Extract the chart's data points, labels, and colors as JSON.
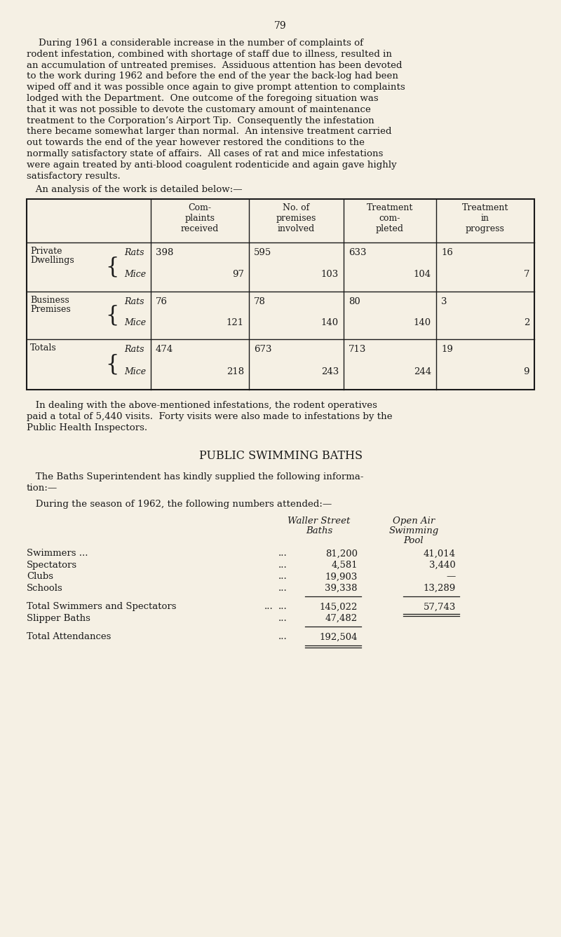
{
  "page_number": "79",
  "bg_color": "#f5f0e4",
  "text_color": "#1a1a1a",
  "p1_lines": [
    "    During 1961 a considerable increase in the number of complaints of",
    "rodent infestation, combined with shortage of staff due to illness, resulted in",
    "an accumulation of untreated premises.  Assiduous attention has been devoted",
    "to the work during 1962 and before the end of the year the back-log had been",
    "wiped off and it was possible once again to give prompt attention to complaints",
    "lodged with the Department.  One outcome of the foregoing situation was",
    "that it was not possible to devote the customary amount of maintenance",
    "treatment to the Corporation’s Airport Tip.  Consequently the infestation",
    "there became somewhat larger than normal.  An intensive treatment carried",
    "out towards the end of the year however restored the conditions to the",
    "normally satisfactory state of affairs.  All cases of rat and mice infestations",
    "were again treated by anti-blood coagulent rodenticide and again gave highly",
    "satisfactory results."
  ],
  "analysis_intro": "   An analysis of the work is detailed below:—",
  "table_col_headers": [
    "Com-\nplaints\nreceived",
    "No. of\npremises\ninvolved",
    "Treatment\ncom-\npleted",
    "Treatment\nin\nprogress"
  ],
  "table_rows": [
    {
      "category1": "Private",
      "category2": "Dwellings",
      "complaints_rats": "398",
      "complaints_mice": "97",
      "premises_rats": "595",
      "premises_mice": "103",
      "treatment_comp_rats": "633",
      "treatment_comp_mice": "104",
      "treatment_prog_rats": "16",
      "treatment_prog_mice": "7"
    },
    {
      "category1": "Business",
      "category2": "Premises",
      "complaints_rats": "76",
      "complaints_mice": "121",
      "premises_rats": "78",
      "premises_mice": "140",
      "treatment_comp_rats": "80",
      "treatment_comp_mice": "140",
      "treatment_prog_rats": "3",
      "treatment_prog_mice": "2"
    },
    {
      "category1": "Totals",
      "category2": "",
      "complaints_rats": "474",
      "complaints_mice": "218",
      "premises_rats": "673",
      "premises_mice": "243",
      "treatment_comp_rats": "713",
      "treatment_comp_mice": "244",
      "treatment_prog_rats": "19",
      "treatment_prog_mice": "9"
    }
  ],
  "p2_lines": [
    "   In dealing with the above-mentioned infestations, the rodent operatives",
    "paid a total of 5,440 visits.  Forty visits were also made to infestations by the",
    "Public Health Inspectors."
  ],
  "section_title": "PUBLIC SWIMMING BATHS",
  "p3_lines": [
    "   The Baths Superintendent has kindly supplied the following informa-",
    "tion:—"
  ],
  "p4_line": "   During the season of 1962, the following numbers attended:—",
  "baths_col1_header_line1": "Waller Street",
  "baths_col1_header_line2": "Baths",
  "baths_col2_header_line1": "Open Air",
  "baths_col2_header_line2": "Swimming",
  "baths_col2_header_line3": "Pool",
  "baths_rows": [
    {
      "label": "Swimmers ...",
      "val1": "81,200",
      "val2": "41,014"
    },
    {
      "label": "Spectators",
      "val1": "4,581",
      "val2": "3,440"
    },
    {
      "label": "Clubs",
      "val1": "19,903",
      "val2": "—"
    },
    {
      "label": "Schools",
      "val1": "39,338",
      "val2": "13,289"
    }
  ],
  "baths_total1_label": "Total Swimmers and Spectators",
  "baths_total1_val1": "145,022",
  "baths_total1_val2": "57,743",
  "baths_total2_label": "Slipper Baths",
  "baths_total2_val1": "47,482",
  "baths_grand_label": "Total Attendances",
  "baths_grand_val1": "192,504"
}
